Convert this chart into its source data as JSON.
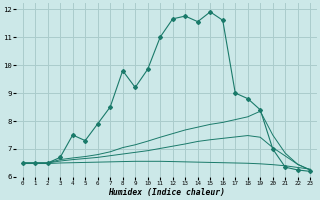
{
  "xlabel": "Humidex (Indice chaleur)",
  "background_color": "#cce8e8",
  "grid_color": "#aacccc",
  "line_color": "#1a7a6a",
  "xlim": [
    -0.5,
    23.5
  ],
  "ylim": [
    6,
    12.2
  ],
  "yticks": [
    6,
    7,
    8,
    9,
    10,
    11,
    12
  ],
  "xticks": [
    0,
    1,
    2,
    3,
    4,
    5,
    6,
    7,
    8,
    9,
    10,
    11,
    12,
    13,
    14,
    15,
    16,
    17,
    18,
    19,
    20,
    21,
    22,
    23
  ],
  "curve1_x": [
    0,
    1,
    2,
    3,
    4,
    5,
    6,
    7,
    8,
    9,
    10,
    11,
    12,
    13,
    14,
    15,
    16,
    17,
    18,
    19,
    20,
    21,
    22,
    23
  ],
  "curve1_y": [
    6.5,
    6.5,
    6.5,
    6.7,
    7.5,
    7.3,
    7.9,
    8.5,
    9.8,
    9.2,
    9.85,
    11.0,
    11.65,
    11.75,
    11.55,
    11.9,
    11.6,
    9.0,
    8.8,
    8.4,
    7.0,
    6.35,
    6.25,
    6.2
  ],
  "curve2_x": [
    0,
    1,
    2,
    3,
    4,
    5,
    6,
    7,
    8,
    9,
    10,
    11,
    12,
    13,
    14,
    15,
    16,
    17,
    18,
    19,
    20,
    21,
    22,
    23
  ],
  "curve2_y": [
    6.5,
    6.5,
    6.5,
    6.62,
    6.68,
    6.73,
    6.8,
    6.9,
    7.05,
    7.15,
    7.28,
    7.42,
    7.55,
    7.68,
    7.78,
    7.88,
    7.95,
    8.05,
    8.15,
    8.35,
    7.5,
    6.85,
    6.45,
    6.25
  ],
  "curve3_x": [
    0,
    1,
    2,
    3,
    4,
    5,
    6,
    7,
    8,
    9,
    10,
    11,
    12,
    13,
    14,
    15,
    16,
    17,
    18,
    19,
    20,
    21,
    22,
    23
  ],
  "curve3_y": [
    6.5,
    6.5,
    6.5,
    6.57,
    6.62,
    6.66,
    6.7,
    6.76,
    6.82,
    6.88,
    6.94,
    7.02,
    7.1,
    7.18,
    7.27,
    7.33,
    7.38,
    7.43,
    7.48,
    7.42,
    7.05,
    6.75,
    6.45,
    6.25
  ],
  "curve4_x": [
    0,
    1,
    2,
    3,
    4,
    5,
    6,
    7,
    8,
    9,
    10,
    11,
    12,
    13,
    14,
    15,
    16,
    17,
    18,
    19,
    20,
    21,
    22,
    23
  ],
  "curve4_y": [
    6.48,
    6.48,
    6.48,
    6.5,
    6.51,
    6.52,
    6.53,
    6.54,
    6.55,
    6.56,
    6.56,
    6.56,
    6.55,
    6.54,
    6.53,
    6.52,
    6.51,
    6.5,
    6.49,
    6.47,
    6.44,
    6.4,
    6.34,
    6.28
  ]
}
